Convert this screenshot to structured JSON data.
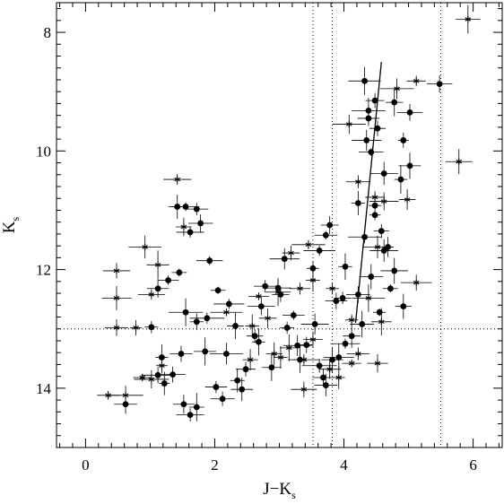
{
  "chart_data": {
    "type": "scatter",
    "xlabel_main": "J−K",
    "xlabel_sub": "s",
    "ylabel_main": "K",
    "ylabel_sub": "s",
    "xlim": [
      -0.45,
      6.45
    ],
    "ylim": [
      15.0,
      7.5
    ],
    "y_inverted": true,
    "x_ticks": [
      0,
      2,
      4,
      6
    ],
    "x_tick_labels": [
      "0",
      "2",
      "4",
      "6"
    ],
    "y_ticks": [
      8,
      10,
      12,
      14
    ],
    "y_tick_labels": [
      "8",
      "10",
      "12",
      "14"
    ],
    "reference_lines": {
      "vertical_dotted_x": [
        3.52,
        3.82,
        5.5
      ],
      "horizontal_dotted_y": [
        13.0
      ]
    },
    "fit_line": {
      "x": [
        4.18,
        4.58
      ],
      "y": [
        12.9,
        8.5
      ]
    },
    "series": [
      {
        "marker": "filled-circle",
        "points": [
          [
            0.62,
            14.27
          ],
          [
            1.02,
            12.97
          ],
          [
            1.12,
            12.32
          ],
          [
            1.18,
            13.48
          ],
          [
            1.35,
            13.77
          ],
          [
            1.42,
            10.94
          ],
          [
            1.55,
            10.94
          ],
          [
            1.72,
            10.98
          ],
          [
            1.62,
            11.37
          ],
          [
            1.78,
            11.22
          ],
          [
            1.45,
            12.05
          ],
          [
            1.55,
            12.72
          ],
          [
            1.72,
            12.88
          ],
          [
            1.88,
            12.82
          ],
          [
            1.52,
            14.27
          ],
          [
            1.62,
            14.45
          ],
          [
            1.72,
            14.32
          ],
          [
            2.02,
            13.98
          ],
          [
            2.12,
            14.18
          ],
          [
            2.35,
            13.87
          ],
          [
            2.48,
            13.68
          ],
          [
            2.68,
            13.22
          ],
          [
            2.32,
            12.95
          ],
          [
            2.78,
            12.28
          ],
          [
            2.98,
            12.31
          ],
          [
            3.08,
            11.82
          ],
          [
            3.12,
            12.98
          ],
          [
            3.22,
            12.77
          ],
          [
            3.42,
            13.27
          ],
          [
            3.55,
            12.92
          ],
          [
            3.62,
            13.62
          ],
          [
            3.68,
            13.82
          ],
          [
            3.82,
            13.52
          ],
          [
            3.88,
            12.53
          ],
          [
            3.98,
            12.48
          ],
          [
            4.02,
            13.25
          ],
          [
            4.12,
            13.12
          ],
          [
            4.32,
            8.82
          ],
          [
            4.38,
            9.32
          ],
          [
            4.35,
            9.82
          ],
          [
            4.42,
            10.02
          ],
          [
            4.48,
            9.15
          ],
          [
            4.52,
            9.62
          ],
          [
            4.62,
            10.38
          ],
          [
            4.78,
            9.18
          ],
          [
            4.92,
            9.82
          ],
          [
            5.02,
            9.35
          ],
          [
            4.88,
            10.48
          ],
          [
            5.02,
            10.25
          ],
          [
            5.48,
            8.87
          ],
          [
            4.22,
            10.88
          ],
          [
            4.32,
            11.45
          ],
          [
            4.48,
            11.08
          ],
          [
            4.62,
            11.68
          ],
          [
            4.78,
            12.02
          ],
          [
            4.92,
            12.62
          ],
          [
            4.72,
            12.32
          ],
          [
            4.55,
            12.72
          ],
          [
            4.42,
            12.12
          ],
          [
            3.62,
            11.68
          ],
          [
            3.72,
            11.42
          ],
          [
            3.78,
            11.25
          ],
          [
            3.52,
            11.98
          ],
          [
            2.62,
            13.12
          ],
          [
            2.22,
            12.58
          ],
          [
            2.05,
            12.35
          ],
          [
            1.92,
            11.85
          ],
          [
            1.28,
            12.18
          ],
          [
            1.48,
            13.42
          ],
          [
            1.22,
            13.92
          ],
          [
            2.42,
            14.02
          ],
          [
            2.88,
            13.65
          ],
          [
            3.28,
            13.28
          ],
          [
            3.02,
            12.42
          ],
          [
            3.32,
            13.52
          ],
          [
            4.48,
            10.92
          ],
          [
            4.58,
            11.35
          ],
          [
            4.68,
            11.62
          ],
          [
            4.38,
            9.45
          ],
          [
            4.28,
            12.92
          ],
          [
            4.22,
            12.42
          ],
          [
            4.02,
            11.95
          ],
          [
            2.72,
            12.62
          ],
          [
            2.18,
            13.42
          ],
          [
            1.85,
            13.38
          ],
          [
            1.12,
            13.78
          ],
          [
            3.72,
            13.95
          ],
          [
            3.92,
            13.48
          ]
        ]
      },
      {
        "marker": "star",
        "points": [
          [
            5.92,
            7.78
          ],
          [
            5.78,
            10.18
          ],
          [
            0.35,
            14.12
          ],
          [
            0.62,
            14.12
          ],
          [
            0.48,
            12.02
          ],
          [
            0.48,
            12.48
          ],
          [
            0.48,
            12.98
          ],
          [
            0.92,
            11.62
          ],
          [
            0.78,
            12.98
          ],
          [
            1.12,
            11.92
          ],
          [
            1.02,
            12.42
          ],
          [
            1.42,
            10.48
          ],
          [
            1.52,
            11.28
          ],
          [
            0.88,
            13.82
          ],
          [
            1.02,
            13.85
          ],
          [
            1.18,
            13.62
          ],
          [
            2.55,
            13.52
          ],
          [
            2.92,
            13.42
          ],
          [
            3.15,
            13.32
          ],
          [
            3.38,
            14.02
          ],
          [
            3.38,
            13.52
          ],
          [
            3.52,
            13.18
          ],
          [
            4.08,
            9.55
          ],
          [
            4.12,
            12.85
          ],
          [
            4.22,
            13.42
          ],
          [
            4.52,
            13.58
          ],
          [
            4.12,
            13.58
          ],
          [
            3.92,
            13.82
          ],
          [
            3.78,
            13.68
          ],
          [
            3.45,
            11.58
          ],
          [
            3.32,
            12.32
          ],
          [
            2.68,
            12.45
          ],
          [
            2.58,
            12.95
          ],
          [
            2.18,
            12.72
          ],
          [
            4.22,
            10.52
          ],
          [
            4.48,
            10.78
          ],
          [
            4.62,
            10.85
          ],
          [
            4.98,
            10.82
          ],
          [
            4.38,
            12.48
          ],
          [
            4.58,
            12.88
          ],
          [
            5.12,
            12.22
          ],
          [
            3.82,
            12.32
          ],
          [
            3.52,
            12.18
          ],
          [
            2.98,
            12.38
          ],
          [
            3.18,
            11.72
          ],
          [
            5.12,
            8.82
          ],
          [
            4.82,
            8.95
          ],
          [
            4.52,
            11.62
          ],
          [
            2.82,
            12.82
          ],
          [
            3.02,
            13.48
          ]
        ]
      }
    ]
  }
}
